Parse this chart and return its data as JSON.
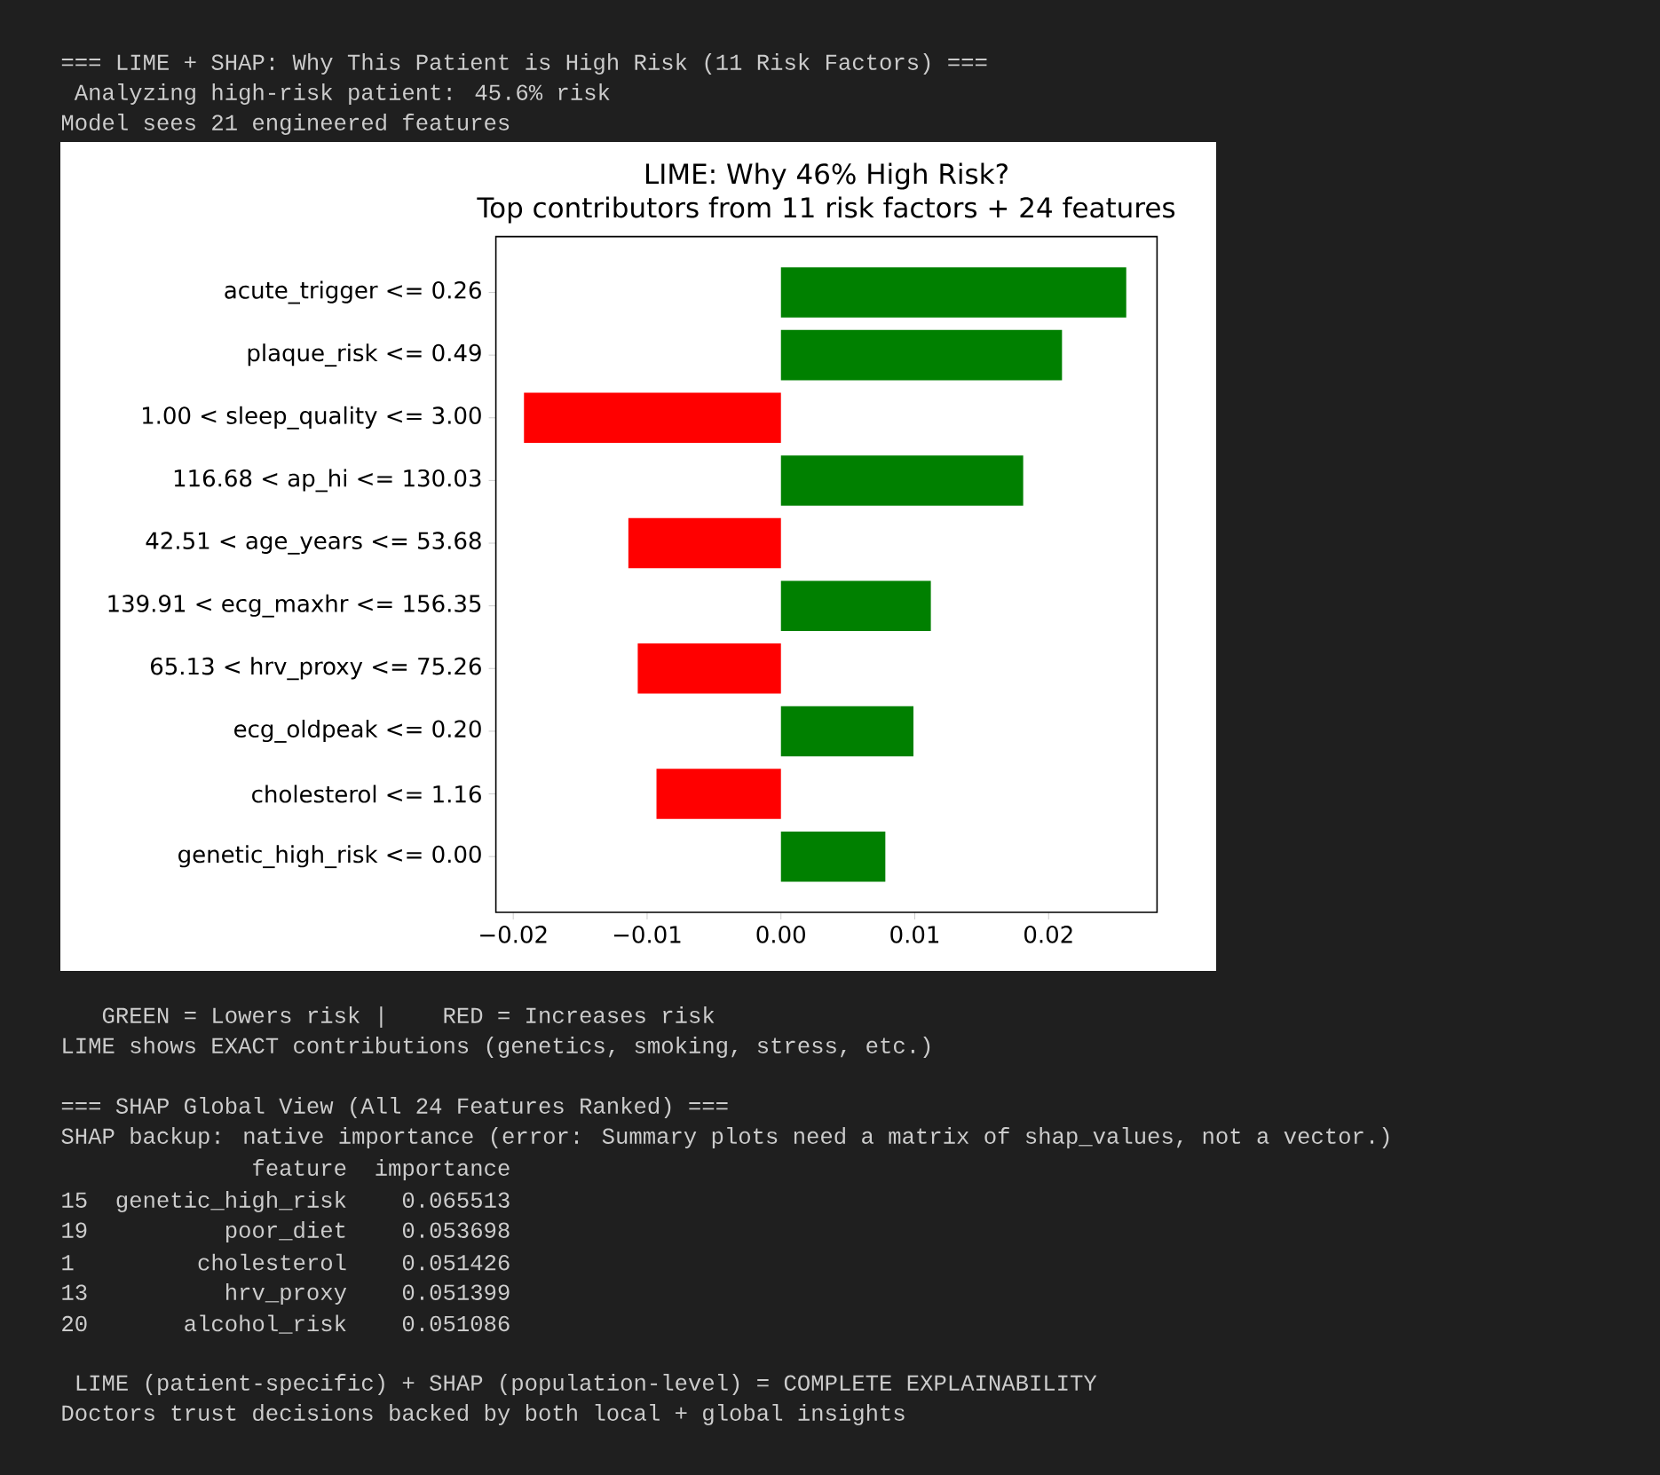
{
  "chart_data": {
    "type": "bar",
    "orientation": "horizontal",
    "title": "LIME: Why 46% High Risk?",
    "subtitle": "Top contributors from 11 risk factors + 24 features",
    "categories": [
      "acute_trigger <= 0.26",
      "plaque_risk <= 0.49",
      "1.00 < sleep_quality <= 3.00",
      "116.68 < ap_hi <= 130.03",
      "42.51 < age_years <= 53.68",
      "139.91 < ecg_maxhr <= 156.35",
      "65.13 < hrv_proxy <= 75.26",
      "ecg_oldpeak <= 0.20",
      "cholesterol <= 1.16",
      "genetic_high_risk <= 0.00"
    ],
    "values": [
      0.0258,
      0.021,
      -0.0192,
      0.0181,
      -0.0114,
      0.0112,
      -0.0107,
      0.0099,
      -0.0093,
      0.0078
    ],
    "colors": [
      "#008000",
      "#008000",
      "#ff0000",
      "#008000",
      "#ff0000",
      "#008000",
      "#ff0000",
      "#008000",
      "#ff0000",
      "#008000"
    ],
    "xlim": [
      -0.0213,
      0.0281
    ],
    "xticks": [
      {
        "value": -0.02,
        "label": "−0.02"
      },
      {
        "value": -0.01,
        "label": "−0.01"
      },
      {
        "value": 0,
        "label": "0.00"
      },
      {
        "value": 0.01,
        "label": "0.01"
      },
      {
        "value": 0.02,
        "label": "0.02"
      }
    ],
    "annotations": [
      "=== LIME + SHAP: Why This Patient is High Risk (11 Risk Factors) ===",
      " Analyzing high-risk patient: 45.6% risk",
      "Model sees 21 engineered features",
      "   GREEN = Lowers risk |    RED = Increases risk",
      "LIME shows EXACT contributions (genetics, smoking, stress, etc.)",
      "=== SHAP Global View (All 24 Features Ranked) ===",
      "SHAP backup: native importance (error: Summary plots need a matrix of shap_values, not a vector.)",
      "              feature  importance",
      "15  genetic_high_risk    0.065513",
      "19          poor_diet    0.053698",
      "1         cholesterol    0.051426",
      "13          hrv_proxy    0.051399",
      "20       alcohol_risk    0.051086",
      " LIME (patient-specific) + SHAP (population-level) = COMPLETE EXPLAINABILITY",
      "Doctors trust decisions backed by both local + global insights"
    ]
  }
}
